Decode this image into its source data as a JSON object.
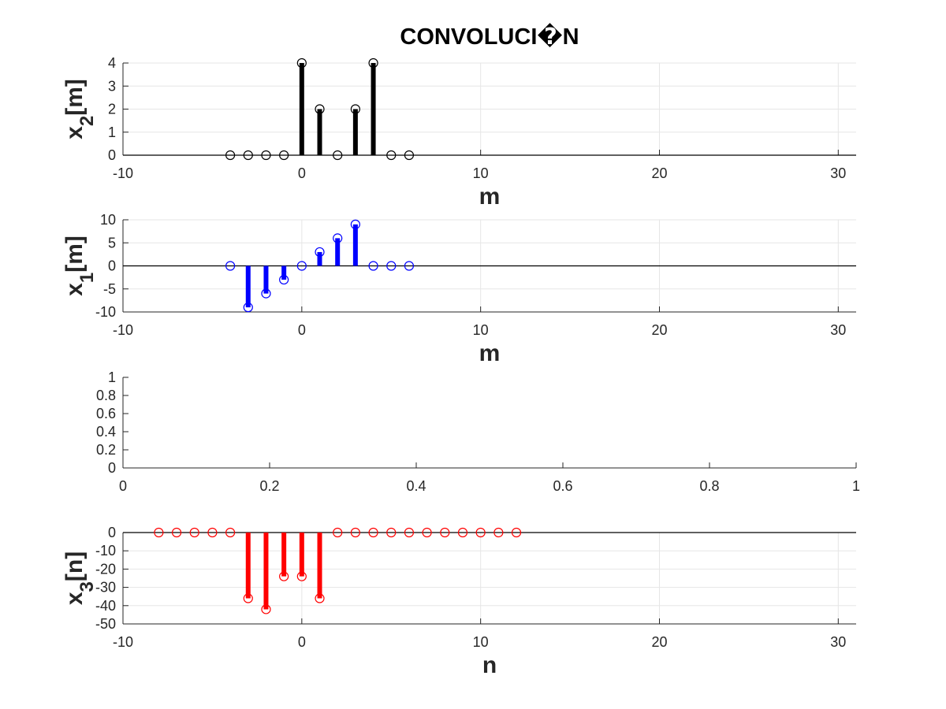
{
  "figure": {
    "title": "CONVOLUCI�N"
  },
  "chart_data": [
    {
      "type": "stem",
      "ylabel": "x",
      "ylabel_sub": "2",
      "ylabel_suffix": "[m]",
      "xlabel": "m",
      "xlim": [
        -10,
        31
      ],
      "ylim": [
        0,
        4
      ],
      "xticks": [
        -10,
        0,
        10,
        20,
        30
      ],
      "yticks": [
        0,
        1,
        2,
        3,
        4
      ],
      "color": "#000000",
      "grid": true,
      "x": [
        -4,
        -3,
        -2,
        -1,
        0,
        1,
        2,
        3,
        4,
        5,
        6
      ],
      "y": [
        0,
        0,
        0,
        0,
        4,
        2,
        0,
        2,
        4,
        0,
        0
      ]
    },
    {
      "type": "stem",
      "ylabel": "x",
      "ylabel_sub": "1",
      "ylabel_suffix": "[m]",
      "xlabel": "m",
      "xlim": [
        -10,
        31
      ],
      "ylim": [
        -10,
        10
      ],
      "xticks": [
        -10,
        0,
        10,
        20,
        30
      ],
      "yticks": [
        -10,
        -5,
        0,
        5,
        10
      ],
      "color": "#0000ff",
      "grid": true,
      "x": [
        -4,
        -3,
        -2,
        -1,
        0,
        1,
        2,
        3,
        4,
        5,
        6
      ],
      "y": [
        0,
        -9,
        -6,
        -3,
        0,
        3,
        6,
        9,
        0,
        0,
        0
      ]
    },
    {
      "type": "empty",
      "ylabel": "",
      "xlabel": "",
      "xlim": [
        0,
        1
      ],
      "ylim": [
        0,
        1
      ],
      "xticks": [
        0,
        0.2,
        0.4,
        0.6,
        0.8,
        1
      ],
      "yticks": [
        0,
        0.2,
        0.4,
        0.6,
        0.8,
        1
      ],
      "grid": false
    },
    {
      "type": "stem",
      "ylabel": "x",
      "ylabel_sub": "3",
      "ylabel_suffix": "[n]",
      "xlabel": "n",
      "xlim": [
        -10,
        31
      ],
      "ylim": [
        -50,
        0
      ],
      "xticks": [
        -10,
        0,
        10,
        20,
        30
      ],
      "yticks": [
        -50,
        -40,
        -30,
        -20,
        -10,
        0
      ],
      "color": "#ff0000",
      "grid": true,
      "x": [
        -8,
        -7,
        -6,
        -5,
        -4,
        -3,
        -2,
        -1,
        0,
        1,
        2,
        3,
        4,
        5,
        6,
        7,
        8,
        9,
        10,
        11,
        12
      ],
      "y": [
        0,
        0,
        0,
        0,
        0,
        -36,
        -42,
        -24,
        -24,
        -36,
        0,
        0,
        0,
        0,
        0,
        0,
        0,
        0,
        0,
        0,
        0
      ]
    }
  ]
}
